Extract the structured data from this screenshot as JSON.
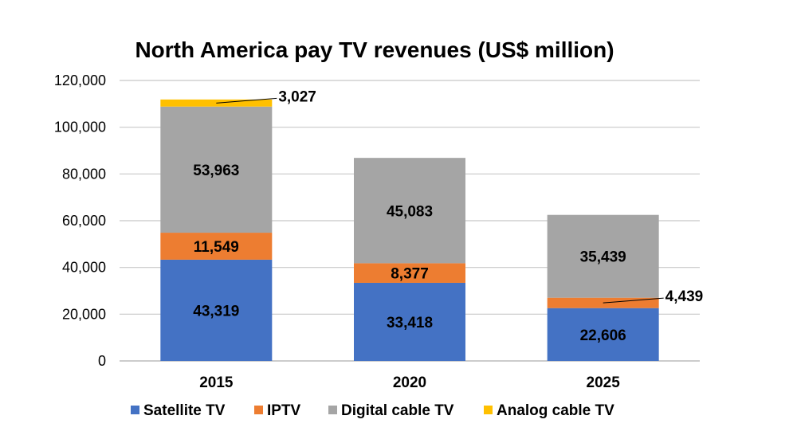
{
  "chart_data": {
    "type": "bar",
    "stacked": true,
    "title": "North America pay TV revenues (US$ million)",
    "xlabel": "",
    "ylabel": "",
    "categories": [
      "2015",
      "2020",
      "2025"
    ],
    "ylim": [
      0,
      120000
    ],
    "yticks": [
      0,
      20000,
      40000,
      60000,
      80000,
      100000,
      120000
    ],
    "ytick_labels": [
      "0",
      "20,000",
      "40,000",
      "60,000",
      "80,000",
      "100,000",
      "120,000"
    ],
    "grid": true,
    "legend_position": "bottom",
    "series": [
      {
        "name": "Satellite TV",
        "color": "#4472C4",
        "values": [
          43319,
          33418,
          22606
        ],
        "labels": [
          "43,319",
          "33,418",
          "22,606"
        ]
      },
      {
        "name": "IPTV",
        "color": "#ED7D31",
        "values": [
          11549,
          8377,
          4439
        ],
        "labels": [
          "11,549",
          "8,377",
          "4,439"
        ]
      },
      {
        "name": "Digital cable TV",
        "color": "#A5A5A5",
        "values": [
          53963,
          45083,
          35439
        ],
        "labels": [
          "53,963",
          "45,083",
          "35,439"
        ]
      },
      {
        "name": "Analog cable TV",
        "color": "#FFC000",
        "values": [
          3027,
          0,
          0
        ],
        "labels": [
          "3,027",
          "",
          ""
        ]
      }
    ]
  }
}
